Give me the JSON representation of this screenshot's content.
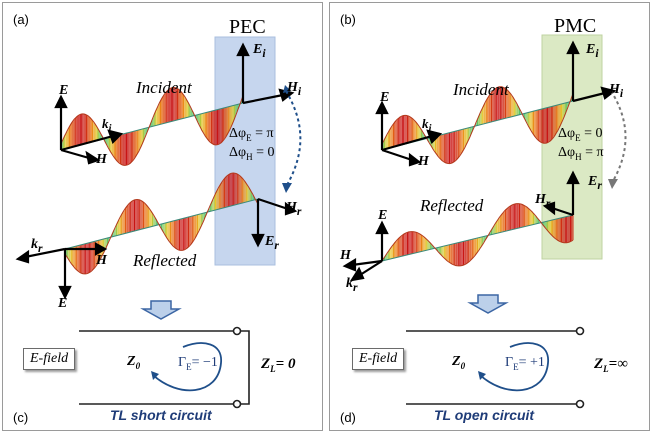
{
  "left": {
    "panel_letter": "(a)",
    "plate_label": "PEC",
    "incident_label": "Incident",
    "reflected_label": "Reflected",
    "E_i": "E",
    "E_i_sub": "i",
    "H_i": "H",
    "H_i_sub": "i",
    "k_i": "k",
    "k_i_sub": "i",
    "E_r": "E",
    "E_r_sub": "r",
    "H_r": "H",
    "H_r_sub": "r",
    "k_r": "k",
    "k_r_sub": "r",
    "E_top": "E",
    "H_top": "H",
    "E_bottom": "E",
    "H_bottom": "H",
    "phase_E": "Δφ",
    "phase_E_sub": "E",
    "phase_E_val": " = π",
    "phase_H": "Δφ",
    "phase_H_sub": "H",
    "phase_H_val": " = 0",
    "tl_letter": "(c)",
    "efield_box": "E-field",
    "z0": "Z",
    "z0_sub": "0",
    "gamma": "Γ",
    "gamma_sub": "E",
    "gamma_val": "= −1",
    "zl": "Z",
    "zl_sub": "L",
    "zl_val": "= 0",
    "caption": "TL short circuit"
  },
  "right": {
    "panel_letter": "(b)",
    "plate_label": "PMC",
    "incident_label": "Incident",
    "reflected_label": "Reflected",
    "E_i": "E",
    "E_i_sub": "i",
    "H_i": "H",
    "H_i_sub": "i",
    "k_i": "k",
    "k_i_sub": "i",
    "E_r": "E",
    "E_r_sub": "r",
    "H_r": "H",
    "H_r_sub": "r",
    "k_r": "k",
    "k_r_sub": "r",
    "E_top": "E",
    "H_top": "H",
    "E_left": "E",
    "H_left": "H",
    "phase_E": "Δφ",
    "phase_E_sub": "E",
    "phase_E_val": " = 0",
    "phase_H": "Δφ",
    "phase_H_sub": "H",
    "phase_H_val": " = π",
    "tl_letter": "(d)",
    "efield_box": "E-field",
    "z0": "Z",
    "z0_sub": "0",
    "gamma": "Γ",
    "gamma_sub": "E",
    "gamma_val": "= +1",
    "zl": "Z",
    "zl_sub": "L",
    "zl_val": "=∞",
    "caption": "TL open circuit"
  },
  "colors": {
    "pec_plate": "#c6d6ee",
    "pmc_plate": "#dbe9c4",
    "caption": "#1f3c78",
    "curve_arrow": "#1f4f8a",
    "down_arrow": "#bcd0ea"
  }
}
